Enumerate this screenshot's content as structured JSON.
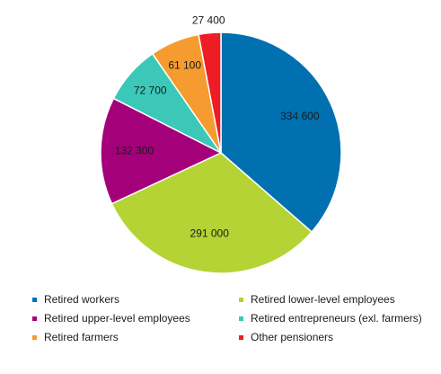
{
  "chart_data": {
    "type": "pie",
    "title": "",
    "categories": [
      "Retired workers",
      "Retired lower-level employees",
      "Retired upper-level employees",
      "Retired entrepreneurs (exl. farmers)",
      "Retired  farmers",
      "Other pensioners"
    ],
    "values": [
      334600,
      291000,
      132300,
      72700,
      61100,
      27400
    ],
    "value_labels": [
      "334 600",
      "291 000",
      "132 300",
      "72 700",
      "61 100",
      "27 400"
    ],
    "colors": [
      "#0070b0",
      "#b5d334",
      "#a4007a",
      "#3cc8b8",
      "#f59b30",
      "#ee1c25"
    ],
    "legend_position": "bottom"
  }
}
